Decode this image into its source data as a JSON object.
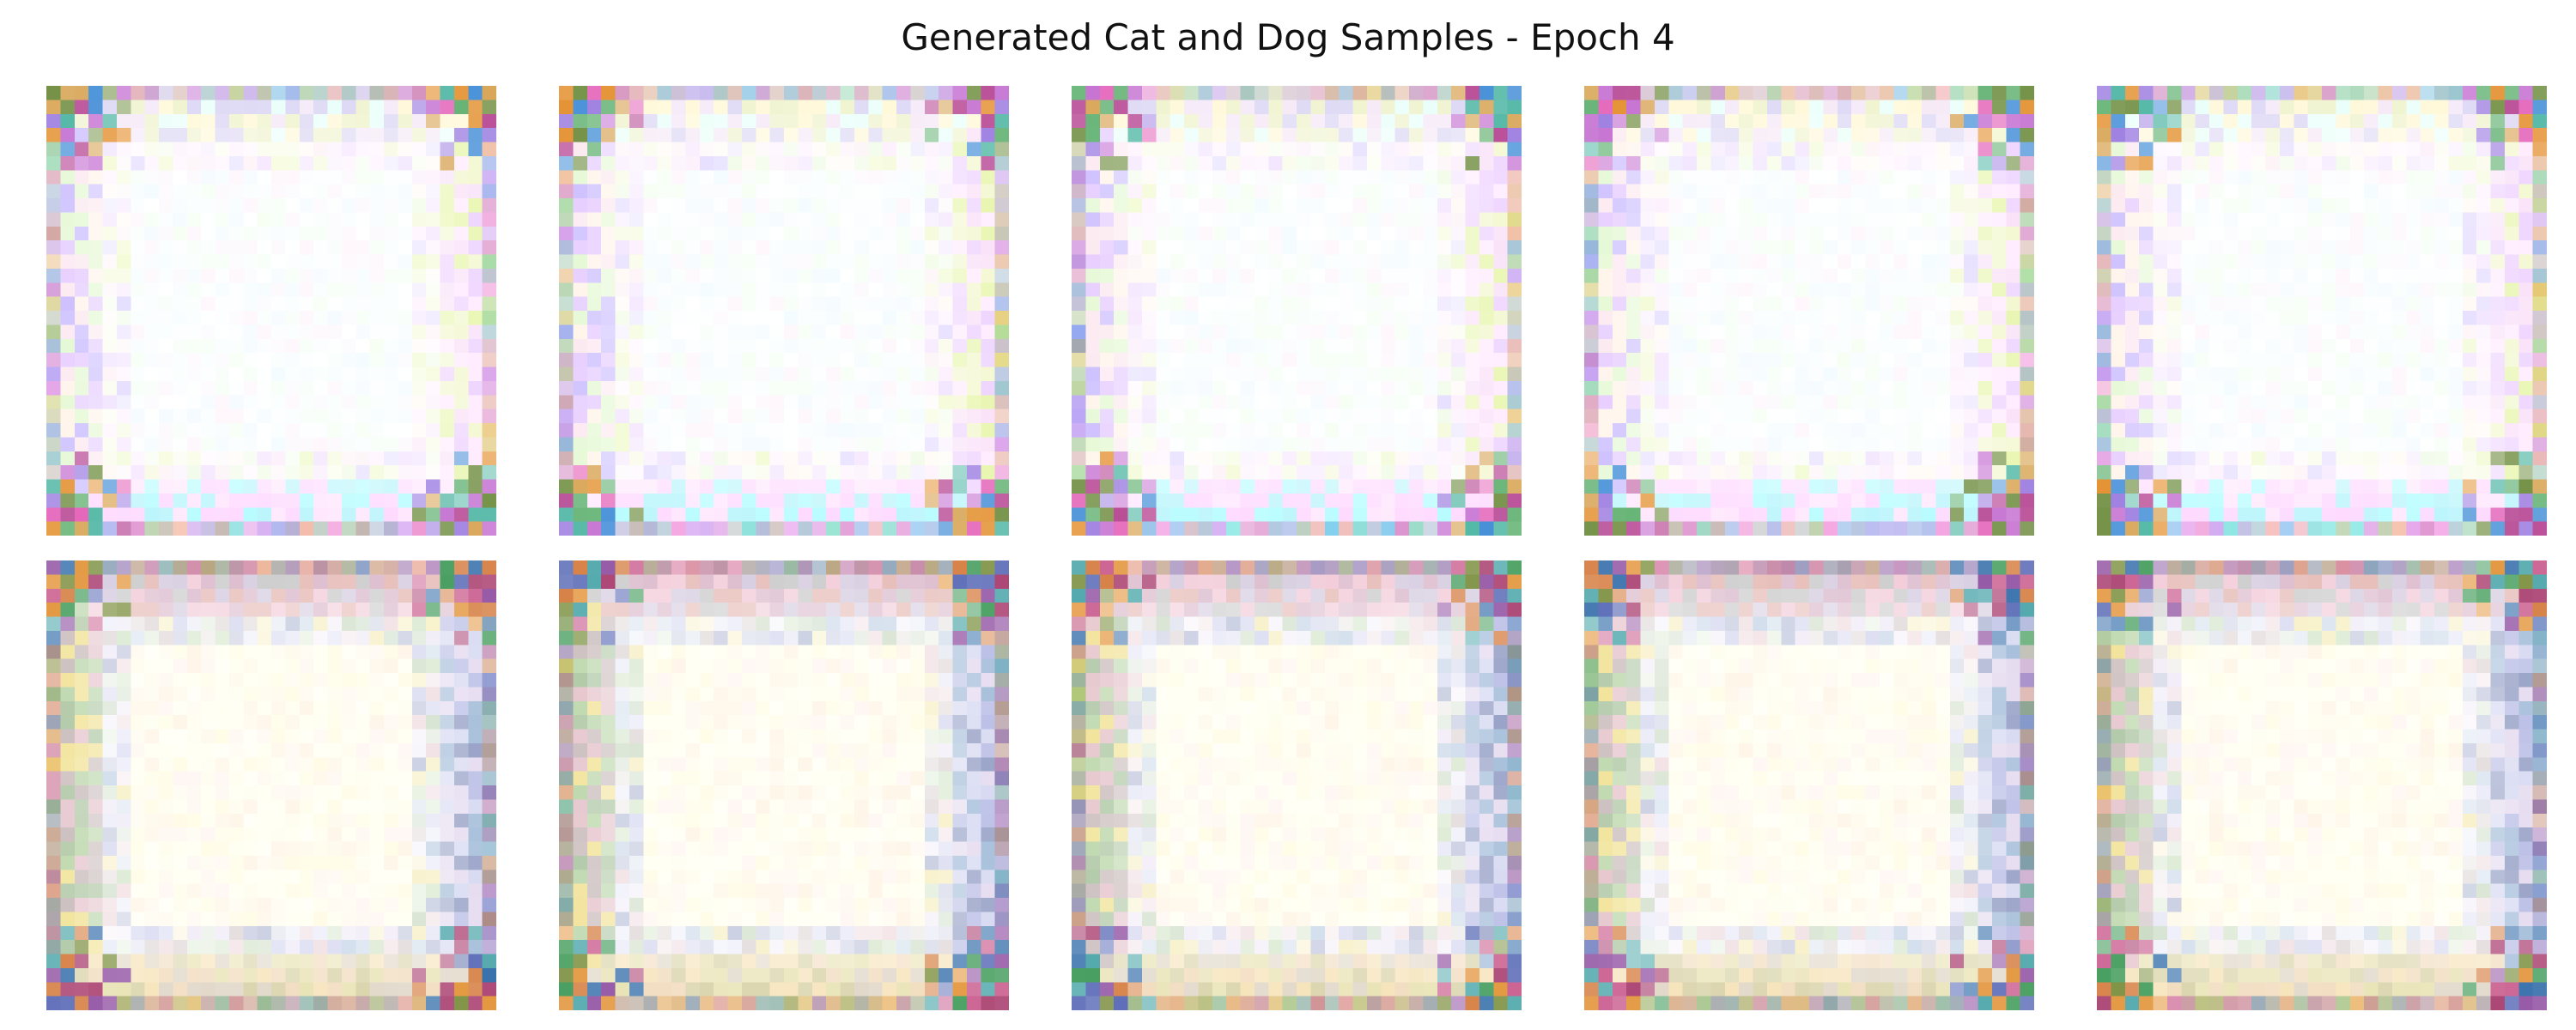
{
  "figure": {
    "title": "Generated Cat and Dog Samples - Epoch 4"
  },
  "grid": {
    "rows": 2,
    "cols": 5,
    "pixel_resolution": 32,
    "samples": [
      {
        "row": 0,
        "col": 0,
        "style": "cool",
        "seed": 11
      },
      {
        "row": 0,
        "col": 1,
        "style": "cool",
        "seed": 12
      },
      {
        "row": 0,
        "col": 2,
        "style": "cool",
        "seed": 13
      },
      {
        "row": 0,
        "col": 3,
        "style": "cool",
        "seed": 14
      },
      {
        "row": 0,
        "col": 4,
        "style": "cool",
        "seed": 15
      },
      {
        "row": 1,
        "col": 0,
        "style": "warm",
        "seed": 21
      },
      {
        "row": 1,
        "col": 1,
        "style": "warm",
        "seed": 22
      },
      {
        "row": 1,
        "col": 2,
        "style": "warm",
        "seed": 23
      },
      {
        "row": 1,
        "col": 3,
        "style": "warm",
        "seed": 24
      },
      {
        "row": 1,
        "col": 4,
        "style": "warm",
        "seed": 25
      }
    ]
  },
  "palettes": {
    "cool": {
      "center": "#fbfeff",
      "inner_tint": [
        "#f4fbff",
        "#fff6fb",
        "#f6fff4",
        "#ffffff"
      ],
      "band_top": [
        "#d9d3f3",
        "#eef2c9",
        "#f4e6f6",
        "#fff7d4",
        "#e8fff9"
      ],
      "band_bottom": [
        "#aefcff",
        "#fdd5ff",
        "#ffe4fd",
        "#b3f4fb",
        "#ffd4ff"
      ],
      "band_left": [
        "#c8b9ff",
        "#e4c8ff",
        "#fbe7ef",
        "#e3f8d1",
        "#fff3e8"
      ],
      "band_right": [
        "#e6f5a8",
        "#edd0ff",
        "#f9dff8",
        "#f2f7cc",
        "#ffe9ff"
      ],
      "corner": [
        "#b54391",
        "#4ab4a1",
        "#e38e2b",
        "#9a7ae0",
        "#6c8b3c",
        "#e35fb7",
        "#5fb06f",
        "#d6a04c",
        "#3e8bd6",
        "#c36cd0"
      ]
    },
    "warm": {
      "center": "#fffff3",
      "inner_tint": [
        "#fffbe6",
        "#fff6f4",
        "#fffff8",
        "#fff4e8"
      ],
      "band_top": [
        "#d9b6c9",
        "#c7c8c7",
        "#e4b6b1",
        "#f1c7d5",
        "#d3c9de"
      ],
      "band_bottom": [
        "#d6d0a3",
        "#f0d8b7",
        "#e6e0ad",
        "#ddd3c2",
        "#f5e0b2"
      ],
      "band_left": [
        "#a9c39e",
        "#c6b7b7",
        "#b7d4a5",
        "#f0e08d",
        "#e3c0c8"
      ],
      "band_right": [
        "#b4b8e3",
        "#8c97c0",
        "#d2d5f0",
        "#9cb7d6",
        "#e2d7ee"
      ],
      "corner": [
        "#a6386a",
        "#3f9a58",
        "#e29236",
        "#5667b5",
        "#7a8e3c",
        "#c95a8c",
        "#4aa5a9",
        "#d47a3c",
        "#2f6aa8",
        "#8f4fa1"
      ]
    }
  }
}
